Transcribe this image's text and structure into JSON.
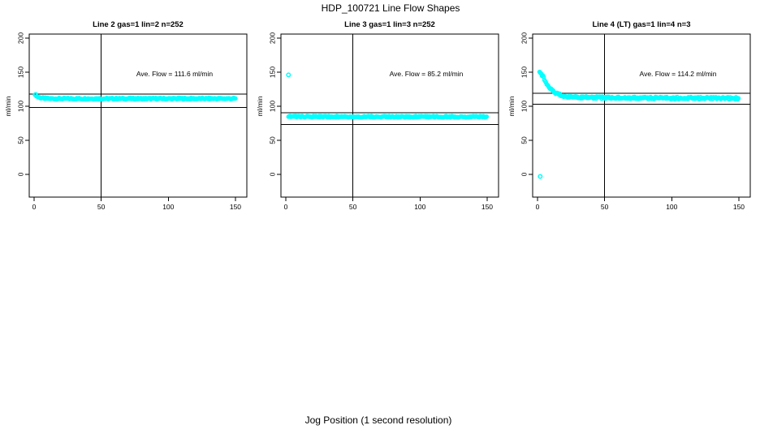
{
  "figure": {
    "title": "HDP_100721  Line Flow Shapes",
    "xlabel": "Jog Position (1 second resolution)",
    "background": "#ffffff",
    "marker_color": "#00ffff",
    "axis_color": "#000000"
  },
  "chart_data": [
    {
      "type": "scatter",
      "title": "Line 2 gas=1 lin=2 n=252",
      "annotation": "Ave. Flow =  111.6  ml/min",
      "ave_flow_ml_min": 111.6,
      "n": 252,
      "ylabel": "ml/min",
      "x_ticks": [
        0,
        50,
        100,
        150
      ],
      "y_ticks": [
        0,
        50,
        100,
        150,
        200
      ],
      "xlim": [
        0,
        150
      ],
      "ylim": [
        0,
        200
      ],
      "vline_x": 50,
      "ref_lines": [
        118,
        98
      ],
      "series_anchors": [
        [
          0.6,
          118
        ],
        [
          1.5,
          116
        ],
        [
          3,
          113.5
        ],
        [
          5,
          112.3
        ],
        [
          8,
          111.6
        ],
        [
          12,
          111.2
        ],
        [
          50,
          111.2
        ],
        [
          150,
          111.3
        ]
      ],
      "x_start": 0.6,
      "x_end": 150,
      "jitter": 1.1,
      "outliers": []
    },
    {
      "type": "scatter",
      "title": "Line 3 gas=1 lin=3 n=252",
      "annotation": "Ave. Flow =  85.2  ml/min",
      "ave_flow_ml_min": 85.2,
      "n": 252,
      "ylabel": "ml/min",
      "x_ticks": [
        0,
        50,
        100,
        150
      ],
      "y_ticks": [
        0,
        50,
        100,
        150,
        200
      ],
      "xlim": [
        0,
        150
      ],
      "ylim": [
        0,
        200
      ],
      "vline_x": 50,
      "ref_lines": [
        90.5,
        73
      ],
      "series_anchors": [
        [
          2,
          85
        ],
        [
          10,
          84.8
        ],
        [
          50,
          84.7
        ],
        [
          150,
          84.6
        ]
      ],
      "x_start": 2,
      "x_end": 150,
      "jitter": 1.0,
      "outliers": [
        [
          2,
          146
        ]
      ]
    },
    {
      "type": "scatter",
      "title": "Line 4 (LT) gas=1 lin=4 n=3",
      "annotation": "Ave. Flow =  114.2  ml/min",
      "ave_flow_ml_min": 114.2,
      "n": 3,
      "ylabel": "ml/min",
      "x_ticks": [
        0,
        50,
        100,
        150
      ],
      "y_ticks": [
        0,
        50,
        100,
        150,
        200
      ],
      "xlim": [
        0,
        150
      ],
      "ylim": [
        0,
        200
      ],
      "vline_x": 50,
      "ref_lines": [
        119,
        103
      ],
      "series_anchors": [
        [
          1.5,
          151
        ],
        [
          3,
          147
        ],
        [
          4,
          144
        ],
        [
          5,
          140
        ],
        [
          6,
          136
        ],
        [
          7,
          132.5
        ],
        [
          8,
          129.5
        ],
        [
          9,
          127
        ],
        [
          10,
          125
        ],
        [
          12,
          121.5
        ],
        [
          14,
          119
        ],
        [
          16,
          117.2
        ],
        [
          18,
          115.8
        ],
        [
          20,
          114.8
        ],
        [
          25,
          113.6
        ],
        [
          30,
          113.2
        ],
        [
          40,
          112.8
        ],
        [
          60,
          112.4
        ],
        [
          100,
          112
        ],
        [
          150,
          111.8
        ]
      ],
      "x_start": 1.5,
      "x_end": 150,
      "jitter": 1.6,
      "outliers": [
        [
          2,
          -3
        ]
      ]
    }
  ]
}
